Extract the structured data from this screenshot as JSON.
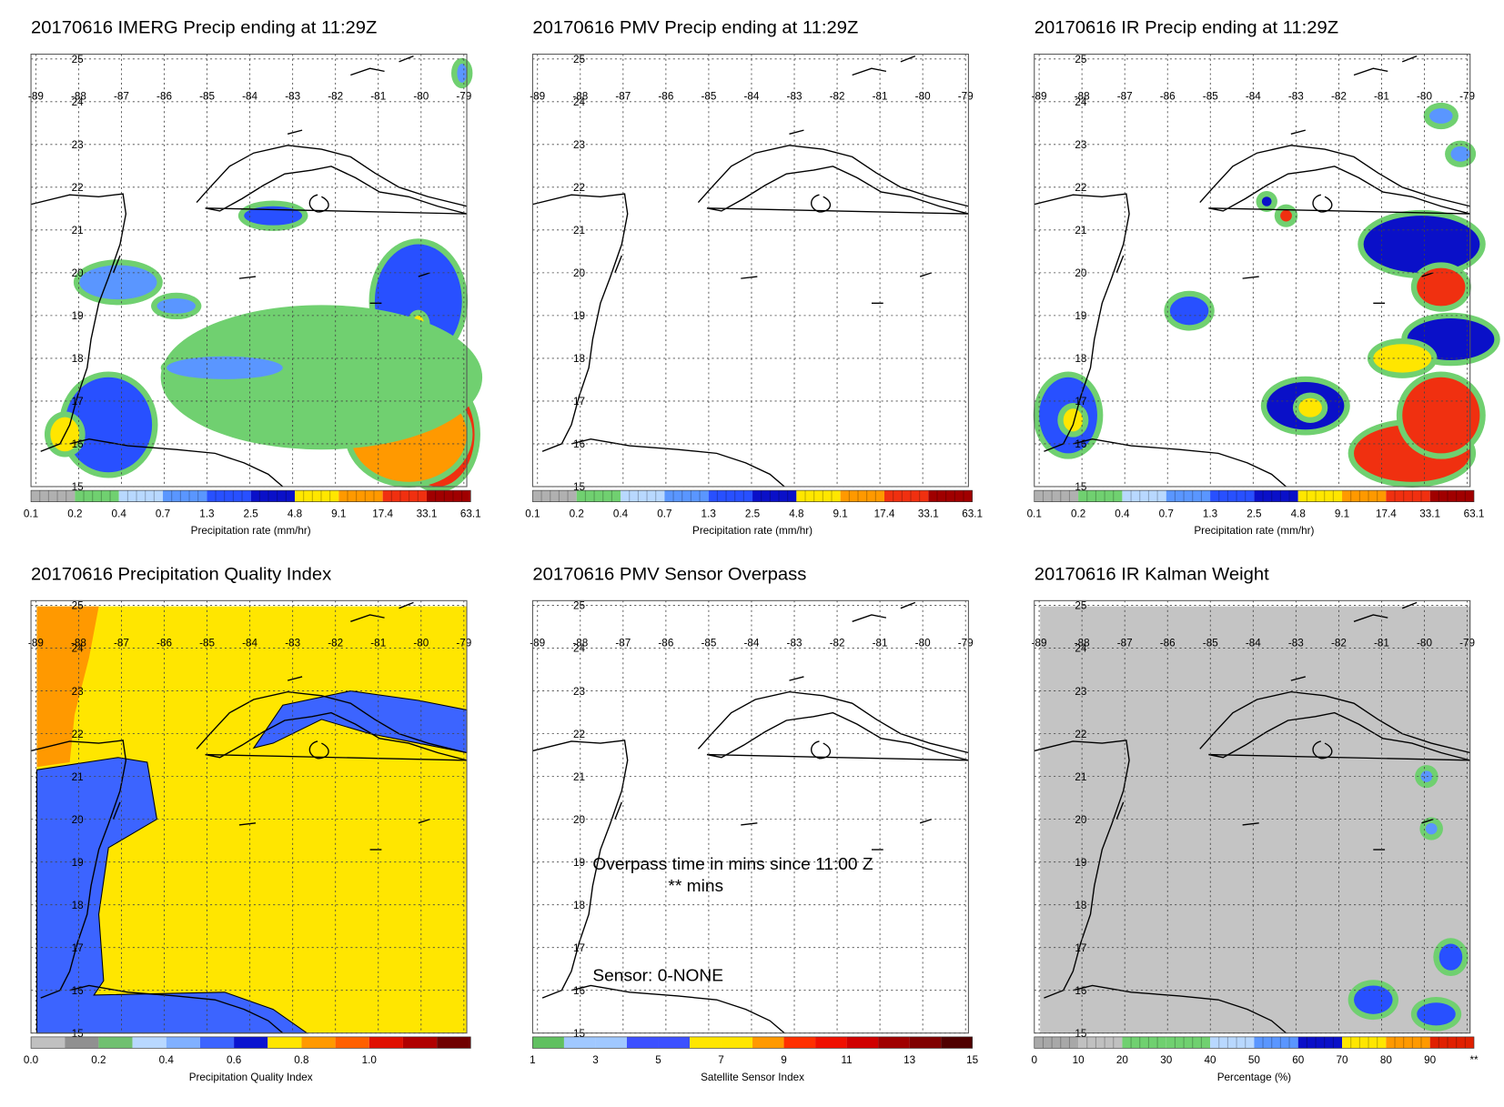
{
  "map": {
    "lat_labels": [
      "25",
      "24",
      "23",
      "22",
      "21",
      "20",
      "19",
      "18",
      "17",
      "16",
      "15"
    ],
    "lon_labels": [
      "-89",
      "-88",
      "-87",
      "-86",
      "-85",
      "-84",
      "-83",
      "-82",
      "-81",
      "-80",
      "-79"
    ]
  },
  "panels": [
    {
      "title": "20170616 IMERG Precip ending at 11:29Z",
      "style": "precip",
      "colorbar": {
        "labels": [
          "0.1",
          "0.2",
          "0.4",
          "0.7",
          "1.3",
          "2.5",
          "4.8",
          "9.1",
          "17.4",
          "33.1",
          "63.1"
        ],
        "label": "Precipitation rate (mm/hr)",
        "colors": [
          "#b0b0b0",
          "#70d070",
          "#b8d8ff",
          "#5a96ff",
          "#2850ff",
          "#0a10c8",
          "#ffe600",
          "#ff9900",
          "#f03010",
          "#a00000"
        ]
      }
    },
    {
      "title": "20170616 PMV Precip ending at 11:29Z",
      "style": "empty",
      "colorbar": {
        "labels": [
          "0.1",
          "0.2",
          "0.4",
          "0.7",
          "1.3",
          "2.5",
          "4.8",
          "9.1",
          "17.4",
          "33.1",
          "63.1"
        ],
        "label": "Precipitation rate (mm/hr)",
        "colors": [
          "#b0b0b0",
          "#70d070",
          "#b8d8ff",
          "#5a96ff",
          "#2850ff",
          "#0a10c8",
          "#ffe600",
          "#ff9900",
          "#f03010",
          "#a00000"
        ]
      }
    },
    {
      "title": "20170616 IR Precip ending at 11:29Z",
      "style": "ir",
      "colorbar": {
        "labels": [
          "0.1",
          "0.2",
          "0.4",
          "0.7",
          "1.3",
          "2.5",
          "4.8",
          "9.1",
          "17.4",
          "33.1",
          "63.1"
        ],
        "label": "Precipitation rate (mm/hr)",
        "colors": [
          "#b0b0b0",
          "#70d070",
          "#b8d8ff",
          "#5a96ff",
          "#2850ff",
          "#0a10c8",
          "#ffe600",
          "#ff9900",
          "#f03010",
          "#a00000"
        ]
      }
    },
    {
      "title": "20170616 Precipitation Quality Index",
      "style": "quality",
      "colorbar": {
        "labels": [
          "0.0",
          "0.2",
          "0.4",
          "0.6",
          "0.8",
          "1.0"
        ],
        "label": "Precipitation Quality Index",
        "colors": [
          "#c0c0c0",
          "#909090",
          "#70c070",
          "#b8d8ff",
          "#80b0ff",
          "#3c64ff",
          "#0a14d0",
          "#ffe600",
          "#ff9900",
          "#ff6000",
          "#e01000",
          "#b00000",
          "#700000"
        ]
      }
    },
    {
      "title": "20170616 PMV Sensor Overpass",
      "style": "empty",
      "annotations": [
        "Overpass time in mins since 11:00 Z",
        "** mins",
        "Sensor:   0-NONE"
      ],
      "colorbar": {
        "labels": [
          "1",
          "3",
          "5",
          "7",
          "9",
          "11",
          "13",
          "15"
        ],
        "label": "Satellite Sensor Index",
        "colors": [
          "#60c060",
          "#a0c8ff",
          "#a0c8ff",
          "#3c50ff",
          "#3c50ff",
          "#ffe600",
          "#ffe600",
          "#ff9900",
          "#ff3000",
          "#f01000",
          "#d00000",
          "#a00000",
          "#800000",
          "#500000"
        ]
      }
    },
    {
      "title": "20170616 IR Kalman Weight",
      "style": "kalman",
      "colorbar": {
        "labels": [
          "0",
          "10",
          "20",
          "30",
          "40",
          "50",
          "60",
          "70",
          "80",
          "90",
          "**"
        ],
        "label": "Percentage (%)",
        "colors": [
          "#a8a8a8",
          "#c0c0c0",
          "#70d070",
          "#70d070",
          "#b8d8ff",
          "#5a96ff",
          "#0a10c8",
          "#ffe600",
          "#ff9900",
          "#e02000"
        ]
      }
    }
  ]
}
